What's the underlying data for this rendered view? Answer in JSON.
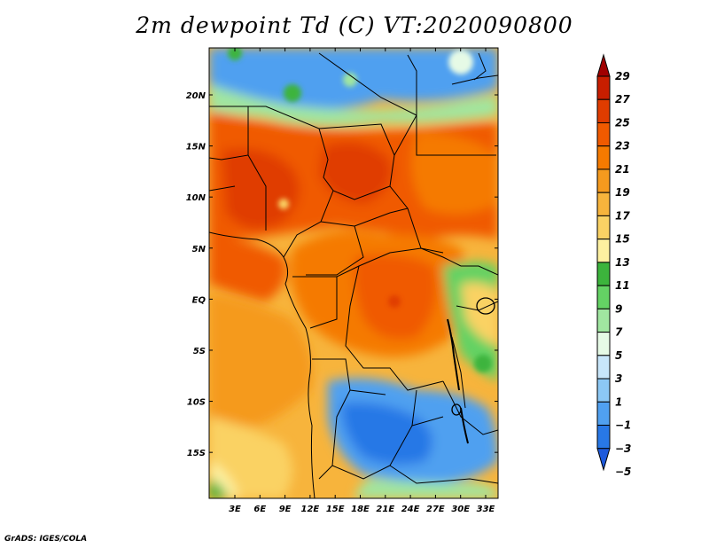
{
  "title": "2m dewpoint Td (C) VT:2020090800",
  "credit": "GrADS: IGES/COLA",
  "map": {
    "lat_labels": [
      "20N",
      "15N",
      "10N",
      "5N",
      "EQ",
      "5S",
      "10S",
      "15S"
    ],
    "lat_values": [
      20,
      15,
      10,
      5,
      0,
      -5,
      -10,
      -15
    ],
    "lon_labels": [
      "3E",
      "6E",
      "9E",
      "12E",
      "15E",
      "18E",
      "21E",
      "24E",
      "27E",
      "30E",
      "33E"
    ],
    "lon_values": [
      3,
      6,
      9,
      12,
      15,
      18,
      21,
      24,
      27,
      30,
      33
    ],
    "lon_range": [
      0,
      35
    ],
    "lat_range": [
      -20,
      25
    ]
  },
  "colorbar": {
    "labels": [
      "29",
      "27",
      "25",
      "23",
      "21",
      "19",
      "17",
      "15",
      "13",
      "11",
      "9",
      "7",
      "5",
      "3",
      "1",
      "−1",
      "−3",
      "−5"
    ],
    "colors_top_to_bottom": [
      "#a00000",
      "#c81e00",
      "#e03c00",
      "#f05a00",
      "#f57a00",
      "#f59a1e",
      "#f7b43c",
      "#fad264",
      "#fdf0a0",
      "#3cb43c",
      "#64d264",
      "#a0e6a0",
      "#e6fae6",
      "#c8e6fa",
      "#8cc8f5",
      "#50a0f0",
      "#2878e6",
      "#1e5adc"
    ]
  }
}
